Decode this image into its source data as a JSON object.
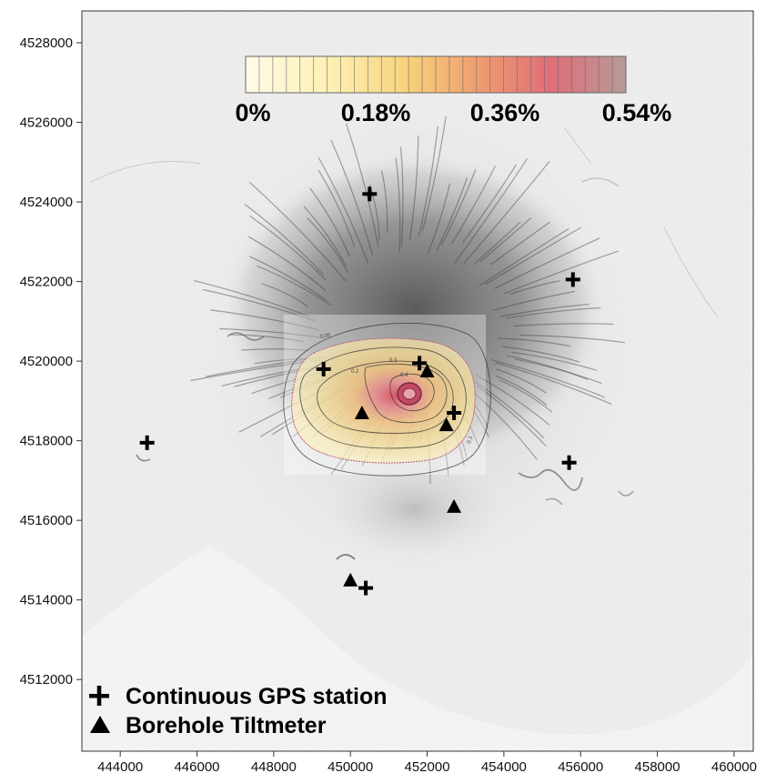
{
  "map": {
    "x_axis": {
      "min": 443000,
      "max": 460500,
      "ticks": [
        "444000",
        "446000",
        "448000",
        "450000",
        "452000",
        "454000",
        "456000",
        "458000",
        "460000"
      ]
    },
    "y_axis": {
      "min": 4510200,
      "max": 4528800,
      "ticks": [
        "4512000",
        "4514000",
        "4516000",
        "4518000",
        "4520000",
        "4522000",
        "4524000",
        "4526000",
        "4528000"
      ]
    },
    "colorbar": {
      "labels": [
        "0%",
        "0.18%",
        "0.36%",
        "0.54%"
      ],
      "colors": [
        "#fffbe8",
        "#fde9a0",
        "#f7c66c",
        "#ee8a6e",
        "#e06e78",
        "#b89a96"
      ]
    },
    "legend": {
      "gps_label": "Continuous GPS station",
      "tiltmeter_label": "Borehole Tiltmeter"
    },
    "contour_labels": [
      "0.05",
      "0.1",
      "0.2",
      "0.3",
      "0.4"
    ],
    "gps_stations": [
      {
        "x": 450500,
        "y": 4524200
      },
      {
        "x": 455800,
        "y": 4522050
      },
      {
        "x": 444700,
        "y": 4517950
      },
      {
        "x": 449300,
        "y": 4519800
      },
      {
        "x": 451800,
        "y": 4519950
      },
      {
        "x": 452700,
        "y": 4518700
      },
      {
        "x": 455700,
        "y": 4517450
      },
      {
        "x": 450400,
        "y": 4514300
      }
    ],
    "tiltmeters": [
      {
        "x": 452000,
        "y": 4519750
      },
      {
        "x": 450300,
        "y": 4518700
      },
      {
        "x": 452500,
        "y": 4518400
      },
      {
        "x": 452700,
        "y": 4516350
      },
      {
        "x": 450000,
        "y": 4514500
      }
    ]
  }
}
